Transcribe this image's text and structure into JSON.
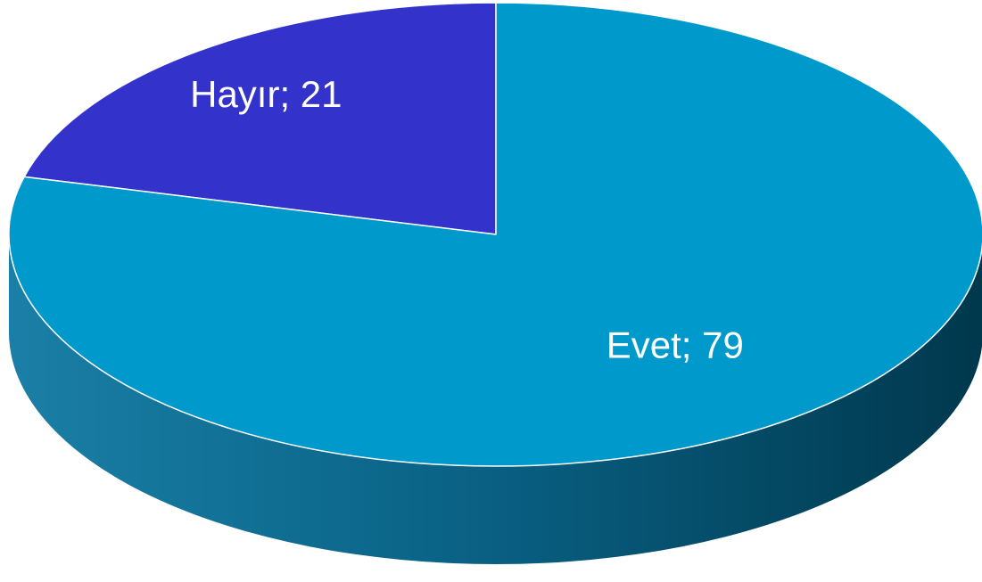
{
  "chart_data": {
    "type": "pie",
    "style": "3d",
    "slices": [
      {
        "label": "Hayır",
        "value": 21,
        "color": "#3333cc",
        "display": "Hayır; 21"
      },
      {
        "label": "Evet",
        "value": 79,
        "color": "#0099cc",
        "display": "Evet; 79"
      }
    ],
    "legend": "none"
  }
}
